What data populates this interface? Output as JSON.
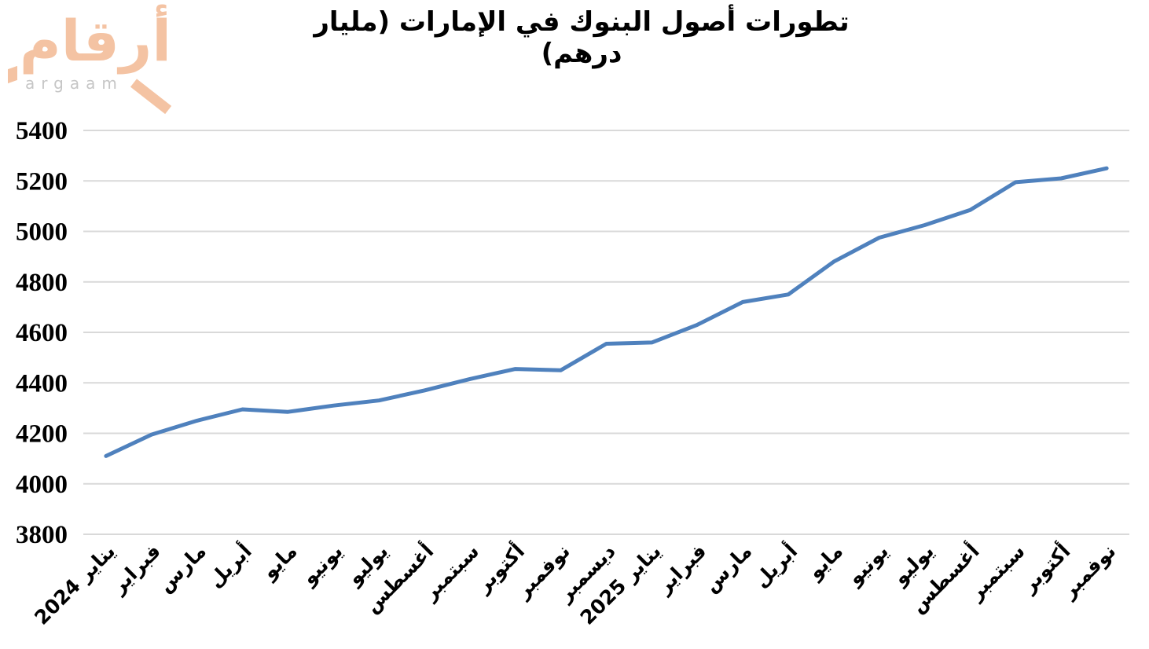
{
  "logo": {
    "arabic": "أرقام",
    "latin": "argaam",
    "accent_color": "#F4C3A3",
    "latin_color": "#C6C6C6"
  },
  "header": {
    "title": "تطورات أصول البنوك في الإمارات (مليار درهم)"
  },
  "chart_data": {
    "type": "line",
    "title": "تطورات أصول البنوك في الإمارات (مليار درهم)",
    "categories": [
      "يناير 2024",
      "فبراير",
      "مارس",
      "أبريل",
      "مايو",
      "يونيو",
      "يوليو",
      "أغسطس",
      "سبتمبر",
      "أكتوبر",
      "نوفمبر",
      "ديسمبر",
      "يناير 2025",
      "فبراير",
      "مارس",
      "أبريل",
      "مايو",
      "يونيو",
      "يوليو",
      "أغسطس",
      "سبتمبر",
      "أكتوبر",
      "نوفمبر"
    ],
    "values": [
      4110,
      4195,
      4250,
      4295,
      4285,
      4310,
      4330,
      4370,
      4415,
      4455,
      4450,
      4555,
      4560,
      4630,
      4720,
      4750,
      4880,
      4975,
      5025,
      5085,
      5195,
      5210,
      5250
    ],
    "xlabel": "",
    "ylabel": "",
    "ylim": [
      3800,
      5400
    ],
    "yticks": [
      3800,
      4000,
      4200,
      4400,
      4600,
      4800,
      5000,
      5200,
      5400
    ],
    "grid": "horizontal",
    "legend": "none",
    "line_color": "#4F81BD",
    "gridline_color": "#D9D9D9",
    "label_color": "#000000"
  }
}
